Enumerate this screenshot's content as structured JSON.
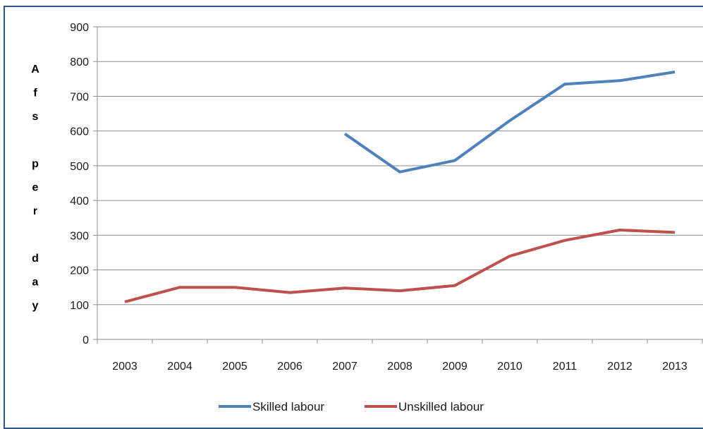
{
  "chart_data": {
    "type": "line",
    "title": "",
    "xlabel": "",
    "ylabel": "Afs per day",
    "ylabel_lines": [
      "A",
      "f",
      "s",
      "",
      "p",
      "e",
      "r",
      "",
      "d",
      "a",
      "y"
    ],
    "x": [
      "2003",
      "2004",
      "2005",
      "2006",
      "2007",
      "2008",
      "2009",
      "2010",
      "2011",
      "2012",
      "2013"
    ],
    "ylim": [
      0,
      900
    ],
    "yticks": [
      0,
      100,
      200,
      300,
      400,
      500,
      600,
      700,
      800,
      900
    ],
    "grid": true,
    "legend_position": "bottom",
    "series": [
      {
        "name": "Skilled labour",
        "color": "#4f81bd",
        "values": [
          null,
          null,
          null,
          null,
          592,
          482,
          515,
          630,
          735,
          745,
          770
        ]
      },
      {
        "name": "Unskilled labour",
        "color": "#c0504d",
        "values": [
          108,
          150,
          150,
          135,
          148,
          140,
          155,
          240,
          285,
          315,
          308
        ]
      }
    ]
  }
}
